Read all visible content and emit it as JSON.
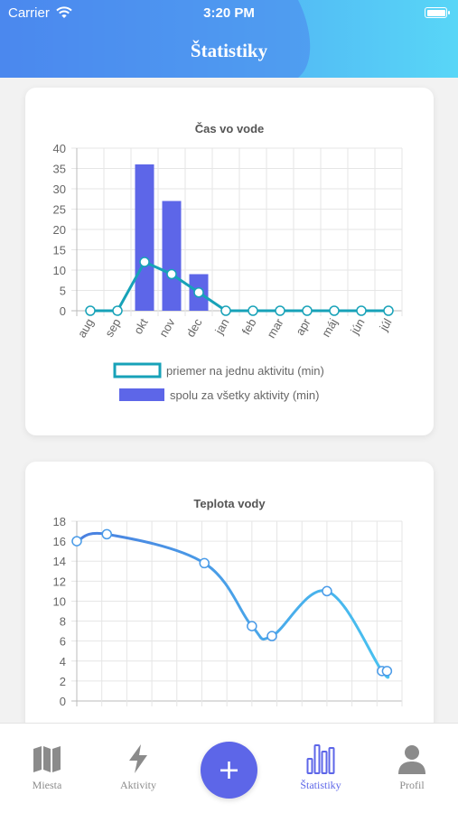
{
  "status_bar": {
    "carrier": "Carrier",
    "time": "3:20 PM"
  },
  "header": {
    "title": "Štatistiky"
  },
  "colors": {
    "accent": "#5d66e8",
    "teal": "#17a2b8",
    "header_start": "#4a90e2",
    "header_end": "#5ad5f5"
  },
  "charts": [
    {
      "chart_data": {
        "type": "bar",
        "title": "Čas vo vode",
        "categories": [
          "aug",
          "sep",
          "okt",
          "nov",
          "dec",
          "jan",
          "feb",
          "mar",
          "apr",
          "máj",
          "jún",
          "júl"
        ],
        "ylim": [
          0,
          40
        ],
        "yticks": [
          0,
          5,
          10,
          15,
          20,
          25,
          30,
          35,
          40
        ],
        "grid": true,
        "legend_position": "bottom",
        "series": [
          {
            "name": "priemer na jednu aktivitu (min)",
            "type": "line",
            "values": [
              0,
              0,
              12,
              9,
              4.5,
              0,
              0,
              0,
              0,
              0,
              0,
              0
            ]
          },
          {
            "name": "spolu za všetky aktivity (min)",
            "type": "bar",
            "values": [
              0,
              0,
              36,
              27,
              9,
              0,
              0,
              0,
              0,
              0,
              0,
              0
            ]
          }
        ]
      }
    },
    {
      "chart_data": {
        "type": "line",
        "title": "Teplota vody",
        "ylim": [
          0,
          18
        ],
        "yticks": [
          0,
          2,
          4,
          6,
          8,
          10,
          12,
          14,
          16,
          18
        ],
        "grid": true,
        "series": [
          {
            "values": [
              16,
              16.7,
              13.8,
              7.5,
              6.5,
              11,
              3,
              3
            ]
          }
        ],
        "point_index": [
          0,
          1.2,
          5.1,
          7,
          7.8,
          10,
          12.2,
          12.4
        ]
      }
    }
  ],
  "tabbar": {
    "items": [
      {
        "label": "Miesta",
        "icon": "map-icon"
      },
      {
        "label": "Aktivity",
        "icon": "bolt-icon"
      },
      {
        "label": "Štatistiky",
        "icon": "bar-chart-icon"
      },
      {
        "label": "Profil",
        "icon": "user-icon"
      }
    ],
    "add_icon": "plus-icon"
  }
}
